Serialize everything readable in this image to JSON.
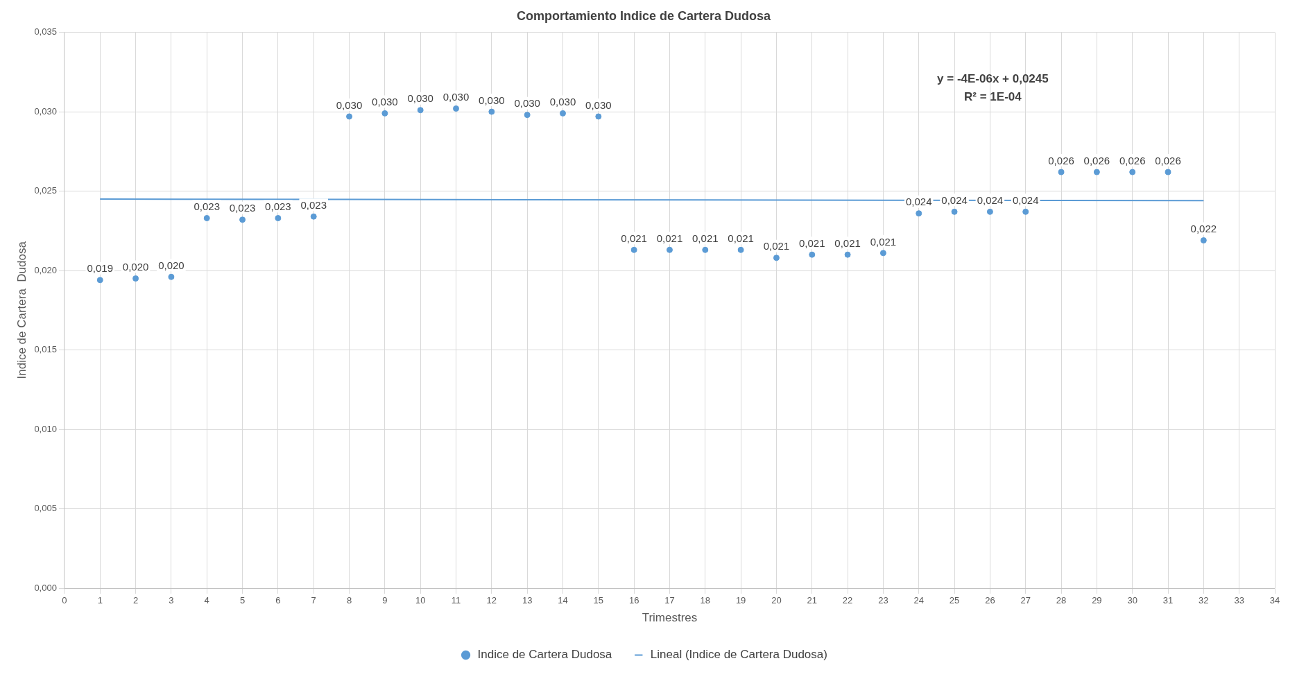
{
  "chart_data": {
    "type": "scatter",
    "title": "Comportamiento Indice de Cartera Dudosa",
    "xlabel": "Trimestres",
    "ylabel": "Indice de Cartera  Dudosa",
    "x": [
      1,
      2,
      3,
      4,
      5,
      6,
      7,
      8,
      9,
      10,
      11,
      12,
      13,
      14,
      15,
      16,
      17,
      18,
      19,
      20,
      21,
      22,
      23,
      24,
      25,
      26,
      27,
      28,
      29,
      30,
      31,
      32
    ],
    "series": [
      {
        "name": "Indice de Cartera Dudosa",
        "type": "scatter",
        "color": "#5b9bd5",
        "marker": "circle",
        "values": [
          0.0194,
          0.0195,
          0.0196,
          0.0233,
          0.0232,
          0.0233,
          0.0234,
          0.0297,
          0.0299,
          0.0301,
          0.0302,
          0.03,
          0.0298,
          0.0299,
          0.0297,
          0.0213,
          0.0213,
          0.0213,
          0.0213,
          0.0208,
          0.021,
          0.021,
          0.0211,
          0.0236,
          0.0237,
          0.0237,
          0.0237,
          0.0262,
          0.0262,
          0.0262,
          0.0262,
          0.0219
        ],
        "value_labels": [
          "0,019",
          "0,020",
          "0,020",
          "0,023",
          "0,023",
          "0,023",
          "0,023",
          "0,030",
          "0,030",
          "0,030",
          "0,030",
          "0,030",
          "0,030",
          "0,030",
          "0,030",
          "0,021",
          "0,021",
          "0,021",
          "0,021",
          "0,021",
          "0,021",
          "0,021",
          "0,021",
          "0,024",
          "0,024",
          "0,024",
          "0,024",
          "0,026",
          "0,026",
          "0,026",
          "0,026",
          "0,022"
        ]
      },
      {
        "name": "Lineal (Indice de Cartera Dudosa)",
        "type": "line",
        "color": "#5b9bd5",
        "marker": "none",
        "line_style": "solid",
        "x": [
          1,
          32
        ],
        "values": [
          0.0245,
          0.0244
        ]
      }
    ],
    "xlim": [
      0,
      34
    ],
    "xticks": [
      0,
      1,
      2,
      3,
      4,
      5,
      6,
      7,
      8,
      9,
      10,
      11,
      12,
      13,
      14,
      15,
      16,
      17,
      18,
      19,
      20,
      21,
      22,
      23,
      24,
      25,
      26,
      27,
      28,
      29,
      30,
      31,
      32,
      33,
      34
    ],
    "ylim": [
      0,
      0.035
    ],
    "yticks": [
      {
        "value": 0,
        "label": "0,000"
      },
      {
        "value": 0.005,
        "label": "0,005"
      },
      {
        "value": 0.01,
        "label": "0,010"
      },
      {
        "value": 0.015,
        "label": "0,015"
      },
      {
        "value": 0.02,
        "label": "0,020"
      },
      {
        "value": 0.025,
        "label": "0,025"
      },
      {
        "value": 0.03,
        "label": "0,030"
      },
      {
        "value": 0.035,
        "label": "0,035"
      }
    ],
    "annotations": [
      "y = -4E-06x + 0,0245",
      "R² = 1E-04"
    ],
    "grid": true,
    "legend": "bottom"
  }
}
